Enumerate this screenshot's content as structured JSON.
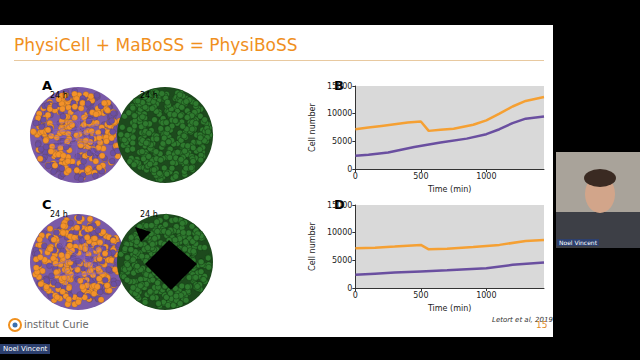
{
  "slide": {
    "title": "PhysiCell + MaBoSS = PhysiBoSS",
    "panels": [
      {
        "label": "A",
        "time_labels": [
          "24 h",
          "24 h"
        ]
      },
      {
        "label": "C",
        "time_labels": [
          "24 h",
          "24 h"
        ]
      }
    ],
    "citation": "Letort et al, 2019",
    "page": "15",
    "logo": "institut Curie"
  },
  "speaker": {
    "name": "Noel Vincent"
  },
  "chart_data": [
    {
      "panel": "B",
      "type": "line",
      "x_label": "Time (min)",
      "y_label": "Cell number",
      "xlim": [
        0,
        1440
      ],
      "xticks": [
        0,
        500,
        1000
      ],
      "ylim": [
        0,
        15000
      ],
      "yticks": [
        0,
        5000,
        10000,
        15000
      ],
      "grid": false,
      "series": [
        {
          "color": "#f5a033",
          "x": [
            0,
            100,
            200,
            300,
            400,
            500,
            560,
            650,
            750,
            900,
            1000,
            1100,
            1200,
            1300,
            1440
          ],
          "values": [
            7200,
            7500,
            7800,
            8100,
            8400,
            8600,
            6900,
            7100,
            7300,
            8000,
            8800,
            10000,
            11300,
            12300,
            13000
          ]
        },
        {
          "color": "#6a4fa0",
          "x": [
            0,
            100,
            250,
            450,
            650,
            850,
            1000,
            1100,
            1200,
            1300,
            1440
          ],
          "values": [
            2400,
            2600,
            3000,
            4000,
            4800,
            5500,
            6300,
            7200,
            8300,
            9100,
            9500
          ]
        }
      ]
    },
    {
      "panel": "D",
      "type": "line",
      "x_label": "Time (min)",
      "y_label": "Cell number",
      "xlim": [
        0,
        1440
      ],
      "xticks": [
        0,
        500,
        1000
      ],
      "ylim": [
        0,
        15000
      ],
      "yticks": [
        0,
        5000,
        10000,
        15000
      ],
      "grid": false,
      "series": [
        {
          "color": "#f5a033",
          "x": [
            0,
            150,
            300,
            500,
            560,
            700,
            900,
            1100,
            1300,
            1440
          ],
          "values": [
            7200,
            7300,
            7500,
            7800,
            7000,
            7100,
            7400,
            7800,
            8500,
            8700
          ]
        },
        {
          "color": "#6a4fa0",
          "x": [
            0,
            150,
            300,
            500,
            700,
            1000,
            1200,
            1440
          ],
          "values": [
            2400,
            2600,
            2800,
            3000,
            3200,
            3600,
            4200,
            4600
          ]
        }
      ]
    }
  ]
}
